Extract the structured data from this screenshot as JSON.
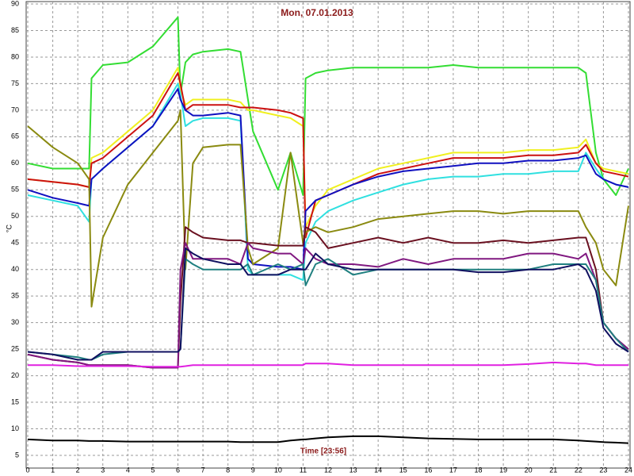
{
  "chart_data": {
    "type": "line",
    "title": "Mon, 07.01.2013",
    "x_label": "Time [23:56]",
    "y_label": "°C",
    "x": [
      0,
      1,
      2,
      2.45,
      2.55,
      3,
      4,
      5,
      6,
      6.1,
      6.3,
      6.6,
      7,
      8,
      8.5,
      8.8,
      9,
      10,
      10.5,
      11,
      11.1,
      11.5,
      12,
      13,
      14,
      15,
      16,
      17,
      18,
      19,
      20,
      21,
      22,
      22.3,
      22.7,
      23,
      23.5,
      24
    ],
    "xlim": [
      0,
      24
    ],
    "xticks": [
      0,
      1,
      2,
      3,
      4,
      5,
      6,
      7,
      8,
      9,
      10,
      11,
      12,
      13,
      14,
      15,
      16,
      17,
      18,
      19,
      20,
      21,
      22,
      23,
      24
    ],
    "ylim": [
      5,
      90
    ],
    "yticks": [
      5,
      10,
      15,
      20,
      25,
      30,
      35,
      40,
      45,
      50,
      55,
      60,
      65,
      70,
      75,
      80,
      85,
      90
    ],
    "grid": true,
    "series": [
      {
        "color": "#33dd33",
        "values": [
          60,
          59,
          59,
          59,
          76,
          78.5,
          79,
          82,
          87.5,
          73,
          79,
          80.5,
          81,
          81.5,
          81,
          72,
          66,
          55,
          62,
          54,
          76,
          77,
          77.5,
          78,
          78,
          78,
          78,
          78.5,
          78,
          78,
          78,
          78,
          78,
          77,
          62,
          57,
          54,
          59
        ]
      },
      {
        "color": "#f0f020",
        "values": [
          57,
          56.5,
          56,
          55.5,
          61,
          62,
          66,
          70,
          78,
          74,
          71,
          72,
          72,
          72,
          71.5,
          70,
          70,
          69,
          68.5,
          67,
          48,
          52,
          55,
          57,
          59,
          60,
          61,
          62,
          62,
          62,
          62.5,
          62.5,
          63,
          64.5,
          60,
          59,
          58.5,
          58
        ]
      },
      {
        "color": "#cc1111",
        "values": [
          57,
          56.5,
          56,
          55.5,
          60,
          61,
          65,
          69,
          77,
          75,
          70,
          71,
          71,
          71,
          70.5,
          70.5,
          70.5,
          70,
          69.5,
          68.5,
          46,
          53,
          54,
          56,
          58,
          59,
          60,
          61,
          61,
          61,
          61.5,
          61.5,
          62,
          63.5,
          60,
          58.5,
          58,
          57.5
        ]
      },
      {
        "color": "#30e0e0",
        "values": [
          54,
          53,
          52,
          49,
          57,
          59,
          63,
          67,
          75,
          73,
          67,
          68,
          68.5,
          68.5,
          68,
          40,
          39,
          39,
          39,
          38,
          45,
          49,
          51,
          53,
          54.5,
          56,
          57,
          57.5,
          57.5,
          58,
          58,
          58.5,
          58.5,
          62,
          59,
          57,
          56,
          55.5
        ]
      },
      {
        "color": "#1010c0",
        "values": [
          55,
          53.5,
          52.5,
          52,
          57,
          59,
          63,
          67,
          74,
          72,
          70,
          69,
          69,
          69.5,
          69,
          42,
          41,
          40.5,
          40.5,
          40,
          51,
          53,
          54,
          56,
          57.5,
          58.5,
          59,
          59.5,
          60,
          60,
          60.5,
          60.5,
          61,
          61.5,
          58,
          57,
          56,
          55.5
        ]
      },
      {
        "color": "#8a8a10",
        "values": [
          67,
          63,
          60,
          57,
          33,
          46,
          56,
          62,
          68,
          70,
          40,
          60,
          63,
          63.5,
          63.5,
          44,
          41,
          44,
          62,
          45,
          47,
          48,
          47,
          48,
          49.5,
          50,
          50.5,
          51,
          51,
          50.5,
          51,
          51,
          51,
          48,
          45,
          40,
          37,
          52
        ]
      },
      {
        "color": "#6a1020",
        "values": [
          24,
          23,
          22.5,
          22,
          22,
          22,
          22,
          21.5,
          21.5,
          34,
          48,
          47,
          46,
          45.5,
          45.5,
          45,
          45,
          44.5,
          44.5,
          44.5,
          48,
          47,
          44,
          45,
          46,
          45,
          46,
          45,
          45,
          45.5,
          45,
          45.5,
          46,
          46,
          40,
          30,
          27,
          25
        ]
      },
      {
        "color": "#801880",
        "values": [
          24,
          23,
          22.5,
          22,
          22,
          22,
          22,
          21.5,
          21.5,
          40,
          45,
          42,
          42,
          42,
          41,
          45,
          44,
          43,
          43,
          41,
          44,
          42,
          41,
          41,
          40.5,
          42,
          41,
          42,
          42,
          42,
          43,
          43,
          42,
          43,
          38,
          30,
          27,
          25
        ]
      },
      {
        "color": "#208080",
        "values": [
          24.5,
          24,
          23.5,
          23,
          23,
          24,
          24.5,
          24.5,
          24.5,
          25,
          42,
          41,
          40,
          40,
          40,
          41,
          39,
          41,
          40,
          41,
          37,
          41,
          42,
          39,
          40,
          40,
          40,
          40,
          40,
          40,
          40,
          41,
          41,
          41,
          38,
          30,
          27,
          24.5
        ]
      },
      {
        "color": "#101060",
        "values": [
          24.5,
          24,
          23,
          23,
          23,
          24.5,
          24.5,
          24.5,
          24.5,
          25,
          44,
          43,
          42,
          41,
          41,
          39,
          39,
          39,
          40,
          40,
          40,
          43,
          41,
          40,
          40,
          40,
          40,
          40,
          39.5,
          39.5,
          40,
          40,
          41,
          40,
          36,
          29,
          26,
          24.5
        ]
      },
      {
        "color": "#e020e0",
        "values": [
          22,
          22,
          21.8,
          21.8,
          21.8,
          21.8,
          21.8,
          21.7,
          21.7,
          21.7,
          21.8,
          22,
          22,
          22,
          22,
          22,
          22,
          22,
          22,
          22,
          22.3,
          22.3,
          22.3,
          22,
          22,
          22,
          22,
          22,
          22,
          22,
          22.2,
          22.5,
          22.3,
          22.3,
          22,
          22,
          22,
          22
        ]
      },
      {
        "color": "#000000",
        "values": [
          8,
          7.8,
          7.8,
          7.7,
          7.7,
          7.7,
          7.6,
          7.6,
          7.6,
          7.6,
          7.6,
          7.6,
          7.6,
          7.6,
          7.5,
          7.5,
          7.5,
          7.5,
          7.8,
          8,
          8,
          8.2,
          8.4,
          8.6,
          8.6,
          8.4,
          8.2,
          8.1,
          8,
          8,
          8,
          8,
          7.8,
          7.7,
          7.6,
          7.5,
          7.4,
          7.3
        ]
      }
    ]
  }
}
